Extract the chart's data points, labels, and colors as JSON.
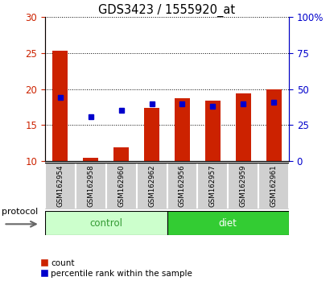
{
  "title": "GDS3423 / 1555920_at",
  "samples": [
    "GSM162954",
    "GSM162958",
    "GSM162960",
    "GSM162962",
    "GSM162956",
    "GSM162957",
    "GSM162959",
    "GSM162961"
  ],
  "groups": [
    "control",
    "control",
    "control",
    "control",
    "diet",
    "diet",
    "diet",
    "diet"
  ],
  "count_values": [
    25.3,
    10.5,
    11.9,
    17.4,
    18.7,
    18.4,
    19.4,
    20.0
  ],
  "percentile_values": [
    44,
    31,
    35,
    40,
    40,
    38,
    40,
    41
  ],
  "ylim_left": [
    10,
    30
  ],
  "ylim_right": [
    0,
    100
  ],
  "yticks_left": [
    10,
    15,
    20,
    25,
    30
  ],
  "yticks_right": [
    0,
    25,
    50,
    75,
    100
  ],
  "bar_color": "#cc2200",
  "dot_color": "#0000cc",
  "control_color_light": "#ccffcc",
  "diet_color_dark": "#33cc33",
  "group_label_control_color": "#339933",
  "group_label_diet_color": "#ffffff",
  "tick_color_left": "#cc2200",
  "tick_color_right": "#0000cc",
  "bar_width": 0.5,
  "legend_count_label": "count",
  "legend_pct_label": "percentile rank within the sample",
  "protocol_label": "protocol",
  "sample_box_color": "#d0d0d0",
  "sample_box_edge_color": "#ffffff"
}
